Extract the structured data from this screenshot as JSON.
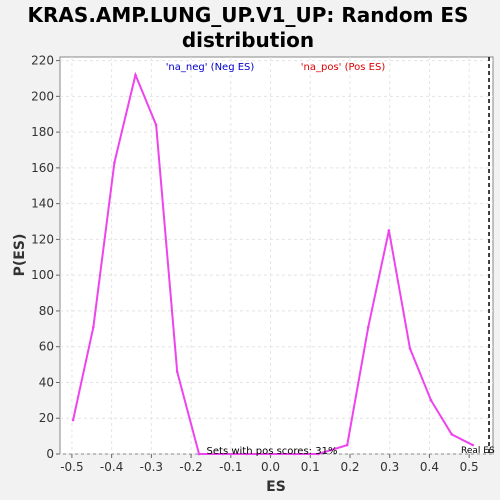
{
  "chart_data": {
    "type": "line",
    "title_line1": "KRAS.AMP.LUNG_UP.V1_UP: Random ES",
    "title_line2": "distribution",
    "xlabel": "ES",
    "ylabel": "P(ES)",
    "xlim": [
      -0.53,
      0.56
    ],
    "ylim": [
      0,
      222
    ],
    "grid": true,
    "x_ticks": [
      "-0.5",
      "-0.4",
      "-0.3",
      "-0.2",
      "-0.1",
      "0.0",
      "0.1",
      "0.2",
      "0.3",
      "0.4",
      "0.5"
    ],
    "x_tick_values": [
      -0.5,
      -0.4,
      -0.3,
      -0.2,
      -0.1,
      0.0,
      0.1,
      0.2,
      0.3,
      0.4,
      0.5
    ],
    "y_ticks": [
      "0",
      "20",
      "40",
      "60",
      "80",
      "100",
      "120",
      "140",
      "160",
      "180",
      "200",
      "220"
    ],
    "y_tick_values": [
      0,
      20,
      40,
      60,
      80,
      100,
      120,
      140,
      160,
      180,
      200,
      220
    ],
    "series": [
      {
        "name": "",
        "color": "#ee44ee",
        "x": [
          -0.497,
          -0.446,
          -0.393,
          -0.34,
          -0.288,
          -0.235,
          -0.18,
          -0.12,
          -0.06,
          0.0,
          0.06,
          0.12,
          0.193,
          0.246,
          0.298,
          0.351,
          0.404,
          0.456,
          0.509
        ],
        "y": [
          19,
          71,
          163,
          212,
          184,
          46,
          0,
          0,
          0,
          0,
          0,
          0,
          5,
          71,
          125,
          59,
          30,
          11,
          5
        ]
      }
    ],
    "legend": [
      {
        "label": "'na_neg' (Neg ES)",
        "color": "#0000cc"
      },
      {
        "label": "'na_pos' (Pos ES)",
        "color": "#dd0000"
      }
    ],
    "legend_placement": "top",
    "annotation": "Sets with pos scores: 31%",
    "real_es_label": "Real ES",
    "real_es_value": 0.55
  }
}
